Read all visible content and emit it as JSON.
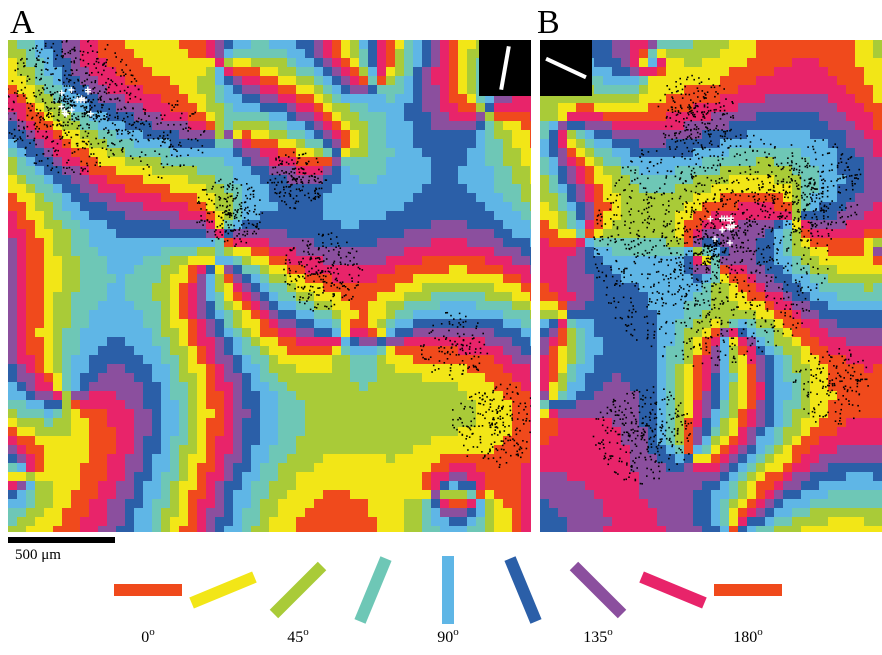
{
  "figure": {
    "panels": [
      {
        "label": "A",
        "inset_orientation_deg": 80
      },
      {
        "label": "B",
        "inset_orientation_deg": 155
      }
    ],
    "scale_bar": {
      "label": "500 μm",
      "value_um": 500
    },
    "legend": {
      "angles_deg": [
        0,
        22.5,
        45,
        67.5,
        90,
        112.5,
        135,
        157.5,
        180
      ],
      "colors": [
        "#f04a1c",
        "#f2e617",
        "#a9cb38",
        "#6ec7b6",
        "#5fb6e6",
        "#2b5fa8",
        "#8b4f9e",
        "#e8246a",
        "#f04a1c"
      ],
      "tick_labels": [
        {
          "text": "0",
          "sup": "o",
          "angle_deg": 0
        },
        {
          "text": "45",
          "sup": "o",
          "angle_deg": 45
        },
        {
          "text": "90",
          "sup": "o",
          "angle_deg": 90
        },
        {
          "text": "135",
          "sup": "o",
          "angle_deg": 135
        },
        {
          "text": "180",
          "sup": "o",
          "angle_deg": 180
        }
      ]
    },
    "color_scale": [
      "#f04a1c",
      "#f2e617",
      "#a9cb38",
      "#6ec7b6",
      "#5fb6e6",
      "#2b5fa8",
      "#8b4f9e",
      "#e8246a"
    ]
  }
}
